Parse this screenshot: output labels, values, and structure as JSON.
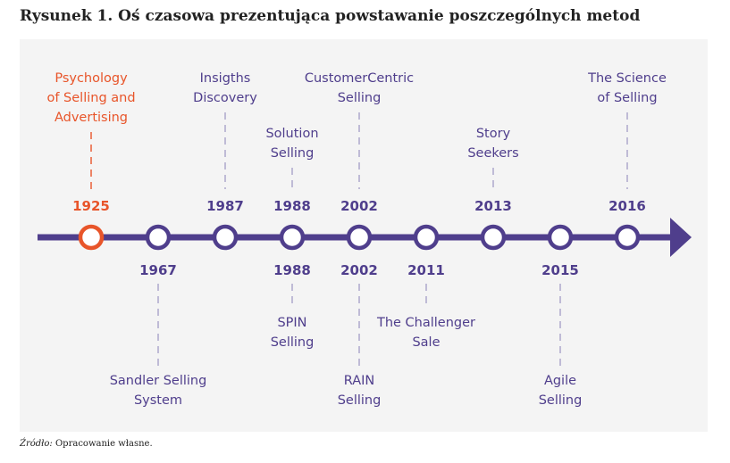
{
  "figure": {
    "title": "Rysunek 1. Oś czasowa prezentująca powstawanie poszczególnych metod",
    "source_prefix": "Źródło:",
    "source_text": " Opracowanie własne."
  },
  "colors": {
    "primary": "#4f3e8c",
    "accent": "#e8552a",
    "node_fill": "#ffffff",
    "connector": "#a9a3c9",
    "background": "#f4f4f4"
  },
  "events": [
    {
      "year": "1925",
      "side": "above",
      "lines": [
        "Psychology",
        "of Selling and",
        "Advertising"
      ],
      "highlight": true
    },
    {
      "year": "1967",
      "side": "below",
      "lines": [
        "Sandler Selling",
        "System"
      ],
      "highlight": false
    },
    {
      "year": "1987",
      "side": "above",
      "lines": [
        "Insigths",
        "Discovery"
      ],
      "highlight": false
    },
    {
      "year": "1988",
      "side": "above",
      "lines": [
        "Solution",
        "Selling"
      ],
      "highlight": false
    },
    {
      "year": "1988",
      "side": "below",
      "lines": [
        "SPIN",
        "Selling"
      ],
      "highlight": false
    },
    {
      "year": "2002",
      "side": "above",
      "lines": [
        "CustomerCentric",
        "Selling"
      ],
      "highlight": false
    },
    {
      "year": "2002",
      "side": "below",
      "lines": [
        "RAIN",
        "Selling"
      ],
      "highlight": false
    },
    {
      "year": "2011",
      "side": "below",
      "lines": [
        "The Challenger",
        "Sale"
      ],
      "highlight": false
    },
    {
      "year": "2013",
      "side": "above",
      "lines": [
        "Story",
        "Seekers"
      ],
      "highlight": false
    },
    {
      "year": "2015",
      "side": "below",
      "lines": [
        "Agile",
        "Selling"
      ],
      "highlight": false
    },
    {
      "year": "2016",
      "side": "above",
      "lines": [
        "The Science",
        "of Selling"
      ],
      "highlight": false
    }
  ]
}
